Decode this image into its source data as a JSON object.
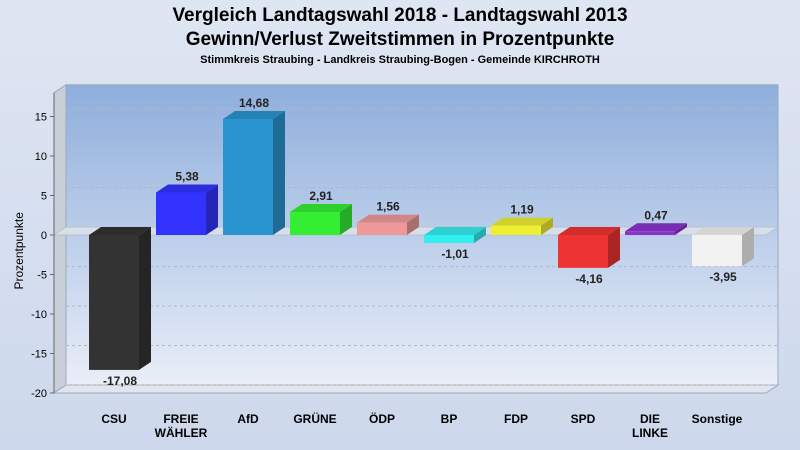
{
  "chart_data": {
    "type": "bar",
    "title": "Vergleich Landtagswahl 2018 - Landtagswahl 2013",
    "subtitle": "Gewinn/Verlust Zweitstimmen in Prozentpunkte",
    "subsubtitle": "Stimmkreis Straubing - Landkreis Straubing-Bogen - Gemeinde KIRCHROTH",
    "ylabel": "Prozentpunkte",
    "ylim": [
      -20,
      18
    ],
    "yticks": [
      15,
      10,
      5,
      0,
      -5,
      -10,
      -15,
      -20
    ],
    "grid": true,
    "categories": [
      [
        "CSU"
      ],
      [
        "FREIE",
        "WÄHLER"
      ],
      [
        "AfD"
      ],
      [
        "GRÜNE"
      ],
      [
        "ÖDP"
      ],
      [
        "BP"
      ],
      [
        "FDP"
      ],
      [
        "SPD"
      ],
      [
        "DIE",
        "LINKE"
      ],
      [
        "Sonstige"
      ]
    ],
    "values": [
      -17.08,
      5.38,
      14.68,
      2.91,
      1.56,
      -1.01,
      1.19,
      -4.16,
      0.47,
      -3.95
    ],
    "value_labels": [
      "-17,08",
      "5,38",
      "14,68",
      "2,91",
      "1,56",
      "-1,01",
      "1,19",
      "-4,16",
      "0,47",
      "-3,95"
    ],
    "colors": [
      "#333333",
      "#3333ff",
      "#2a94d0",
      "#33ee33",
      "#ee9999",
      "#33eeee",
      "#eeee33",
      "#ee3333",
      "#8833cc",
      "#f2f2f2"
    ]
  }
}
